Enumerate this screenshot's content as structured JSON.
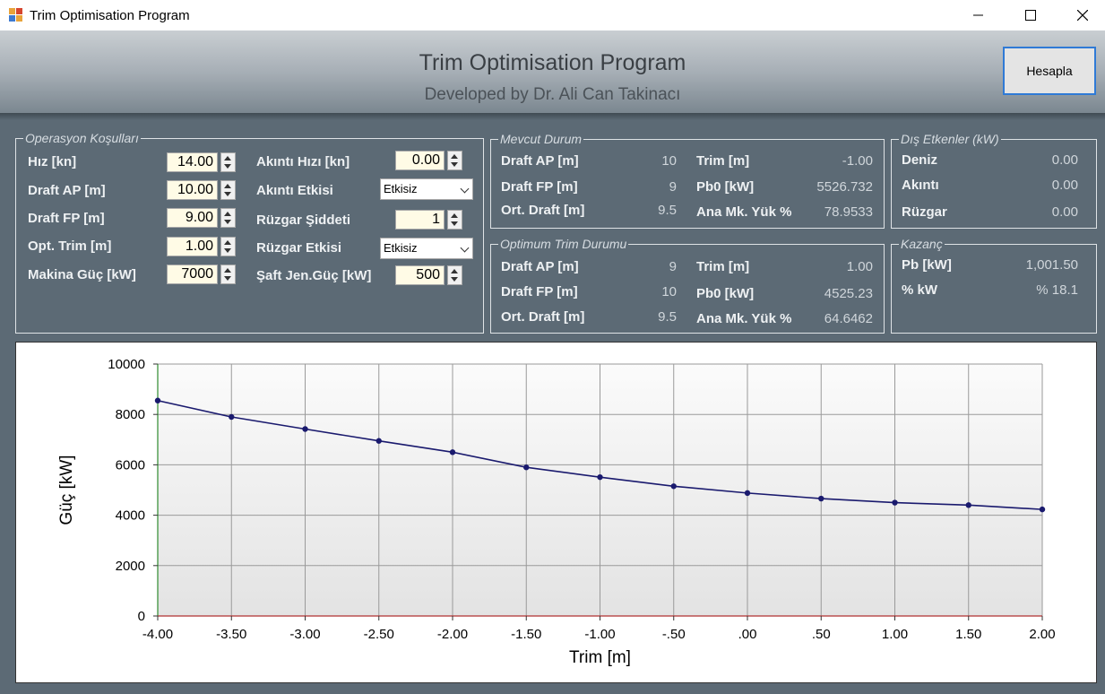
{
  "window": {
    "title": "Trim Optimisation Program"
  },
  "header": {
    "title": "Trim Optimisation Program",
    "subtitle": "Developed by Dr. Ali Can Takinacı",
    "calc_button": "Hesapla"
  },
  "operasyon": {
    "legend": "Operasyon Koşulları",
    "hiz": {
      "label": "Hız [kn]",
      "value": "14.00"
    },
    "draft_ap": {
      "label": "Draft AP [m]",
      "value": "10.00"
    },
    "draft_fp": {
      "label": "Draft FP [m]",
      "value": "9.00"
    },
    "opt_trim": {
      "label": "Opt. Trim [m]",
      "value": "1.00"
    },
    "makina": {
      "label": "Makina Güç [kW]",
      "value": "7000"
    },
    "akinti_hizi": {
      "label": "Akıntı Hızı [kn]",
      "value": "0.00"
    },
    "akinti_etkisi": {
      "label": "Akıntı Etkisi",
      "value": "Etkisiz"
    },
    "ruzgar_siddeti": {
      "label": "Rüzgar Şiddeti",
      "value": "1"
    },
    "ruzgar_etkisi": {
      "label": "Rüzgar Etkisi",
      "value": "Etkisiz"
    },
    "saft": {
      "label": "Şaft Jen.Güç [kW]",
      "value": "500"
    }
  },
  "mevcut": {
    "legend": "Mevcut Durum",
    "draft_ap": {
      "label": "Draft AP [m]",
      "value": "10"
    },
    "draft_fp": {
      "label": "Draft FP [m]",
      "value": "9"
    },
    "ort_draft": {
      "label": "Ort. Draft [m]",
      "value": "9.5"
    },
    "trim": {
      "label": "Trim [m]",
      "value": "-1.00"
    },
    "pb0": {
      "label": "Pb0 [kW]",
      "value": "5526.732"
    },
    "ana_mk": {
      "label": "Ana Mk. Yük %",
      "value": "78.9533"
    }
  },
  "optimum": {
    "legend": "Optimum Trim Durumu",
    "draft_ap": {
      "label": "Draft AP [m]",
      "value": "9"
    },
    "draft_fp": {
      "label": "Draft FP [m]",
      "value": "10"
    },
    "ort_draft": {
      "label": "Ort. Draft [m]",
      "value": "9.5"
    },
    "trim": {
      "label": "Trim [m]",
      "value": "1.00"
    },
    "pb0": {
      "label": "Pb0 [kW]",
      "value": "4525.23"
    },
    "ana_mk": {
      "label": "Ana Mk. Yük %",
      "value": "64.6462"
    }
  },
  "dis_etkenler": {
    "legend": "Dış Etkenler (kW)",
    "deniz": {
      "label": "Deniz",
      "value": "0.00"
    },
    "akinti": {
      "label": "Akıntı",
      "value": "0.00"
    },
    "ruzgar": {
      "label": "Rüzgar",
      "value": "0.00"
    }
  },
  "kazanc": {
    "legend": "Kazanç",
    "pb": {
      "label": "Pb [kW]",
      "value": "1,001.50"
    },
    "kw": {
      "label": "% kW",
      "value": "% 18.1"
    }
  },
  "chart_data": {
    "type": "line",
    "xlabel": "Trim [m]",
    "ylabel": "Güç [kW]",
    "xlim": [
      -4,
      2
    ],
    "ylim": [
      0,
      10000
    ],
    "x_ticks": [
      -4,
      -3.5,
      -3,
      -2.5,
      -2,
      -1.5,
      -1,
      -0.5,
      0,
      0.5,
      1,
      1.5,
      2
    ],
    "x_tick_labels": [
      "-4.00",
      "-3.50",
      "-3.00",
      "-2.50",
      "-2.00",
      "-1.50",
      "-1.00",
      "-.50",
      ".00",
      ".50",
      "1.00",
      "1.50",
      "2.00"
    ],
    "y_ticks": [
      0,
      2000,
      4000,
      6000,
      8000,
      10000
    ],
    "y_tick_labels": [
      "0",
      "2000",
      "4000",
      "6000",
      "8000",
      "10000"
    ],
    "grid": true,
    "colors": {
      "line": "#1a1a6e",
      "y_axis": "#2e8b2e",
      "x_axis": "#b03030"
    },
    "series": [
      {
        "x": [
          -4,
          -3.5,
          -3,
          -2.5,
          -2,
          -1.5,
          -1,
          -0.5,
          0,
          0.5,
          1,
          1.5,
          2
        ],
        "values": [
          8550,
          7900,
          7420,
          6950,
          6500,
          5900,
          5510,
          5150,
          4880,
          4660,
          4500,
          4400,
          4230
        ]
      }
    ]
  }
}
